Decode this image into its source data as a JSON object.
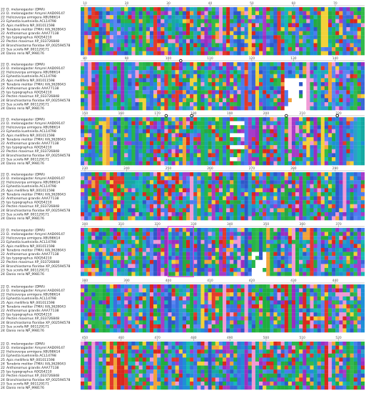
{
  "sequence_labels": [
    {
      "num": "22",
      "name": "D. melanogaster (DMA)"
    },
    {
      "num": "23",
      "name": "D. melanogaster Amyrel AAD09147"
    },
    {
      "num": "22",
      "name": "Helicoverpa armigera ABU98614"
    },
    {
      "num": "23",
      "name": "Ephestia kuehniella ACL14798"
    },
    {
      "num": "25",
      "name": "Apis mellifera NP_001011598"
    },
    {
      "num": "24",
      "name": "Tenebrio molitor (TMA) XAL3628043"
    },
    {
      "num": "22",
      "name": "Anthonomus grandis AAA77138"
    },
    {
      "num": "25",
      "name": "Ips typographus AOQ54210"
    },
    {
      "num": "22",
      "name": "Pecten maximus XP_033726848"
    },
    {
      "num": "24",
      "name": "Branchiostoma floridae XP_002594578"
    },
    {
      "num": "23",
      "name": "Sus scrofa NP_001129171"
    },
    {
      "num": "24",
      "name": "Danio rerio NP_998176"
    }
  ],
  "blocks": [
    {
      "ticks": [
        "10",
        "20",
        "30",
        "40",
        "50",
        "60",
        "70"
      ]
    },
    {
      "ticks": [
        "80",
        "90",
        "100",
        "110",
        "120",
        "130",
        "140"
      ]
    },
    {
      "ticks": [
        "150",
        "160",
        "170",
        "180",
        "190",
        "200",
        "210",
        "220"
      ]
    },
    {
      "ticks": [
        "230",
        "240",
        "250",
        "260",
        "270",
        "280",
        "290"
      ]
    },
    {
      "ticks": [
        "300",
        "310",
        "320",
        "330",
        "340",
        "350",
        "360",
        "370"
      ]
    },
    {
      "ticks": [
        "380",
        "390",
        "400",
        "410",
        "420",
        "430",
        "440"
      ]
    },
    {
      "ticks": [
        "450",
        "460",
        "470",
        "480",
        "490",
        "500",
        "510",
        "520"
      ]
    }
  ],
  "residue_colors": {
    "A": "#3b6fe0",
    "I": "#2f58c8",
    "L": "#4a7cf0",
    "M": "#3a66d6",
    "F": "#1f8fd6",
    "W": "#2aa0c8",
    "V": "#5a86f2",
    "K": "#e23a2b",
    "R": "#d8281e",
    "E": "#a53cc9",
    "D": "#9a2fc0",
    "N": "#1fae3f",
    "Q": "#27b54a",
    "S": "#33b94a",
    "T": "#2aa743",
    "G": "#f2a33a",
    "P": "#f2d23a",
    "C": "#f09ad6",
    "H": "#19b9b3",
    "Y": "#16a8a2",
    "-": "#ffffff"
  },
  "residue_alphabet": "ACDEFGHIKLMNPQRSTVWY",
  "highlight_box_color": "#e040e0"
}
